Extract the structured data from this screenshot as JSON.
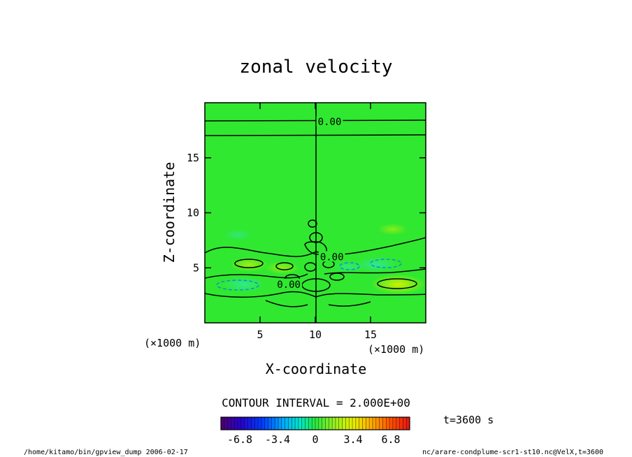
{
  "chart_data": {
    "type": "heatmap",
    "title": "zonal velocity",
    "xlabel": "X-coordinate",
    "ylabel": "Z-coordinate",
    "x_units": "(×1000 m)",
    "y_units": "(×1000 m)",
    "xlim": [
      0,
      20
    ],
    "ylim": [
      0,
      20
    ],
    "x_ticks": [
      5,
      10,
      15
    ],
    "y_ticks": [
      5,
      10,
      15
    ],
    "grid": false,
    "contour_interval_label": "CONTOUR INTERVAL = 2.000E+00",
    "contour_labels": [
      {
        "text": "0.00",
        "x": 11.3,
        "z": 18.3
      },
      {
        "text": "0.00",
        "x": 11.5,
        "z": 6.0
      },
      {
        "text": "0.00",
        "x": 7.6,
        "z": 3.5
      }
    ],
    "time_label": "t=3600 s",
    "colorbar": {
      "min": -8.5,
      "max": 8.5,
      "tick_labels": [
        "-6.8",
        "-3.4",
        "0",
        "3.4",
        "6.8"
      ],
      "tick_values": [
        -6.8,
        -3.4,
        0,
        3.4,
        6.8
      ]
    },
    "features": [
      {
        "x": 4.0,
        "z": 5.3,
        "value": 1.5
      },
      {
        "x": 7.0,
        "z": 5.0,
        "value": 1.2
      },
      {
        "x": 17.5,
        "z": 3.5,
        "value": 2.8
      },
      {
        "x": 3.5,
        "z": 3.5,
        "value": -1.8
      },
      {
        "x": 15.5,
        "z": 5.3,
        "value": -1.8
      },
      {
        "x": 13.0,
        "z": 5.1,
        "value": -1.0
      },
      {
        "x": 3.0,
        "z": 8.0,
        "value": -0.8
      },
      {
        "x": 17.0,
        "z": 8.5,
        "value": 0.8
      }
    ]
  },
  "footer": {
    "left": "/home/kitamo/bin/gpview_dump  2006-02-17",
    "right": "nc/arare-condplume-scr1-st10.nc@VelX,t=3600"
  }
}
